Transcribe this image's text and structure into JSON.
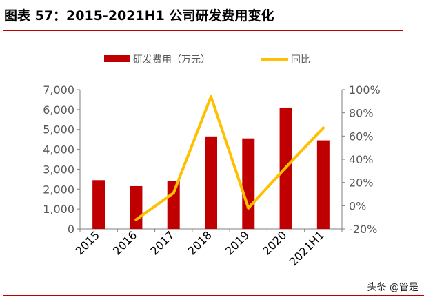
{
  "title": "图表 57：2015-2021H1 公司研发费用变化",
  "watermark": "头条 @管是",
  "colors": {
    "bar": "#c00000",
    "line": "#ffc000",
    "rule": "#c00000",
    "axis": "#7f7f7f",
    "text": "#595959"
  },
  "chart_data": {
    "type": "bar+line",
    "categories": [
      "2015",
      "2016",
      "2017",
      "2018",
      "2019",
      "2020",
      "2021H1"
    ],
    "series": [
      {
        "name": "研发费用（万元）",
        "type": "bar",
        "axis": "left",
        "values": [
          2450,
          2150,
          2400,
          4650,
          4550,
          6100,
          4450
        ]
      },
      {
        "name": "同比",
        "type": "line",
        "axis": "right",
        "values": [
          null,
          -12,
          11,
          94,
          -2,
          33,
          67
        ]
      }
    ],
    "y_left": {
      "min": 0,
      "max": 7000,
      "ticks": [
        "0",
        "1,000",
        "2,000",
        "3,000",
        "4,000",
        "5,000",
        "6,000",
        "7,000"
      ]
    },
    "y_right": {
      "min": -20,
      "max": 100,
      "ticks": [
        "-20%",
        "0%",
        "20%",
        "40%",
        "60%",
        "80%",
        "100%"
      ]
    },
    "legend_position": "top-center",
    "grid": false
  }
}
